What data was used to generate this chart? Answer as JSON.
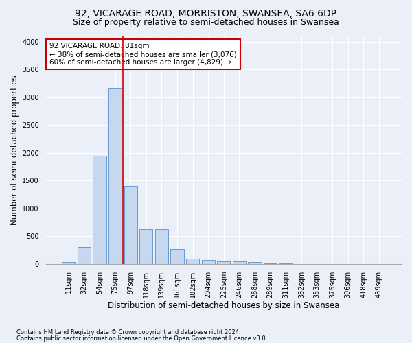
{
  "title1": "92, VICARAGE ROAD, MORRISTON, SWANSEA, SA6 6DP",
  "title2": "Size of property relative to semi-detached houses in Swansea",
  "xlabel": "Distribution of semi-detached houses by size in Swansea",
  "ylabel": "Number of semi-detached properties",
  "categories": [
    "11sqm",
    "32sqm",
    "54sqm",
    "75sqm",
    "97sqm",
    "118sqm",
    "139sqm",
    "161sqm",
    "182sqm",
    "204sqm",
    "225sqm",
    "246sqm",
    "268sqm",
    "289sqm",
    "311sqm",
    "332sqm",
    "353sqm",
    "375sqm",
    "396sqm",
    "418sqm",
    "439sqm"
  ],
  "values": [
    30,
    300,
    1950,
    3150,
    1400,
    620,
    620,
    270,
    100,
    75,
    50,
    40,
    30,
    5,
    3,
    2,
    1,
    1,
    1,
    1,
    1
  ],
  "bar_color": "#c5d8ef",
  "bar_edge_color": "#5b8fc9",
  "vline_color": "#cc0000",
  "annotation_text": "92 VICARAGE ROAD: 81sqm\n← 38% of semi-detached houses are smaller (3,076)\n60% of semi-detached houses are larger (4,829) →",
  "annotation_box_color": "white",
  "annotation_box_edge": "#cc0000",
  "ylim": [
    0,
    4100
  ],
  "yticks": [
    0,
    500,
    1000,
    1500,
    2000,
    2500,
    3000,
    3500,
    4000
  ],
  "footnote1": "Contains HM Land Registry data © Crown copyright and database right 2024.",
  "footnote2": "Contains public sector information licensed under the Open Government Licence v3.0.",
  "bg_color": "#eaeff8",
  "plot_bg_color": "#eaeff8",
  "grid_color": "white",
  "title1_fontsize": 10,
  "title2_fontsize": 9,
  "tick_fontsize": 7,
  "label_fontsize": 8.5,
  "footnote_fontsize": 6
}
